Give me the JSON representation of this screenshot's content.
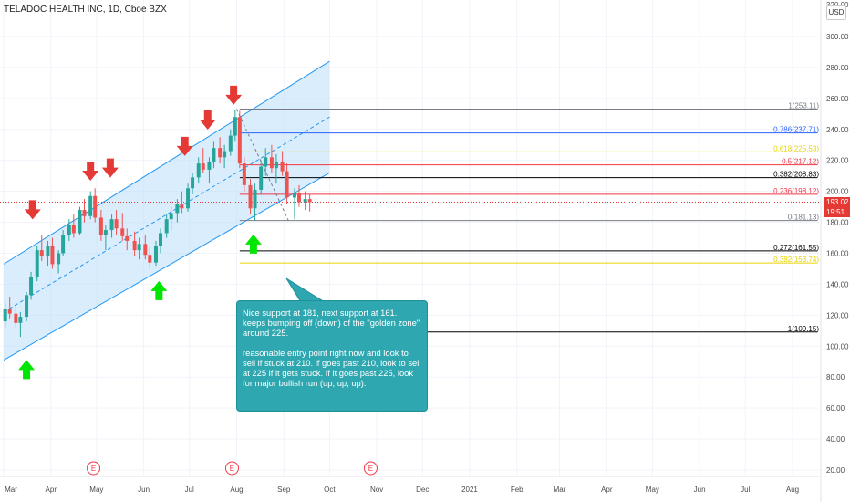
{
  "header": {
    "title": "TELADOC HEALTH INC, 1D, Cboe BZX",
    "currency_button": "USD"
  },
  "current_price": {
    "value": "193.02",
    "countdown": "19:51",
    "color": "#e53935"
  },
  "chart_data": {
    "type": "candlestick",
    "title": "TELADOC HEALTH INC, 1D, Cboe BZX",
    "y_ticks": [
      20,
      40,
      60,
      80,
      100,
      120,
      140,
      160,
      180,
      200,
      220,
      240,
      260,
      280,
      300
    ],
    "y_tick_labels": [
      "20.00",
      "40.00",
      "60.00",
      "80.00",
      "100.00",
      "120.00",
      "140.00",
      "160.00",
      "180.00",
      "200.00",
      "220.00",
      "240.00",
      "260.00",
      "280.00",
      "300.00"
    ],
    "y_top_partial_label": "320.00",
    "ylim": [
      12,
      322
    ],
    "x_labels": [
      "Mar",
      "Apr",
      "May",
      "Jun",
      "Jul",
      "Aug",
      "Sep",
      "Oct",
      "Nov",
      "Dec",
      "2021",
      "Feb",
      "Mar",
      "Apr",
      "May",
      "Jun",
      "Jul",
      "Aug"
    ],
    "x_label_dates": [
      "2020-03-01",
      "2020-04-01",
      "2020-05-01",
      "2020-06-01",
      "2020-07-01",
      "2020-08-01",
      "2020-09-01",
      "2020-10-01",
      "2020-11-01",
      "2020-12-01",
      "2021-01-01",
      "2021-02-01",
      "2021-03-01",
      "2021-04-01",
      "2021-05-01",
      "2021-06-01",
      "2021-07-01",
      "2021-08-01"
    ],
    "earnings_markers": [
      "2020-04-29",
      "2020-07-29",
      "2020-10-28"
    ],
    "earnings_label": "E",
    "up_color": "#26a69a",
    "down_color": "#ef5350",
    "channel": {
      "fill_color": "#bbdefb",
      "line_color": "#2196f3",
      "upper": [
        [
          "2020-03-01",
          153
        ],
        [
          "2020-10-01",
          284
        ]
      ],
      "lower": [
        [
          "2020-03-01",
          91
        ],
        [
          "2020-10-01",
          212
        ]
      ]
    },
    "fib_levels": [
      {
        "label": "1(253.11)",
        "value": 253.11,
        "color": "#787b86"
      },
      {
        "label": "0.786(237.71)",
        "value": 237.71,
        "color": "#2962ff"
      },
      {
        "label": "0.618(225.53)",
        "value": 225.53,
        "color": "#e6d300"
      },
      {
        "label": "0.5(217.12)",
        "value": 217.12,
        "color": "#f23645"
      },
      {
        "label": "0.382(208.83)",
        "value": 208.83,
        "color": "#000000"
      },
      {
        "label": "0.236(198.12)",
        "value": 198.12,
        "color": "#f23645"
      },
      {
        "label": "0(181.13)",
        "value": 181.13,
        "color": "#787b86"
      },
      {
        "label": "0.272(161.55)",
        "value": 161.55,
        "color": "#000000"
      },
      {
        "label": "0.382(153.74)",
        "value": 153.74,
        "color": "#e6d300"
      },
      {
        "label": "1(109.15)",
        "value": 109.15,
        "color": "#000000"
      }
    ],
    "series": [
      {
        "name": "",
        "candles": [
          [
            "2020-03-02",
            116,
            128,
            112,
            124
          ],
          [
            "2020-03-05",
            124,
            132,
            118,
            121
          ],
          [
            "2020-03-09",
            121,
            126,
            112,
            115
          ],
          [
            "2020-03-12",
            115,
            122,
            106,
            119
          ],
          [
            "2020-03-16",
            119,
            135,
            116,
            133
          ],
          [
            "2020-03-19",
            133,
            148,
            130,
            145
          ],
          [
            "2020-03-23",
            145,
            165,
            142,
            162
          ],
          [
            "2020-03-26",
            162,
            172,
            155,
            158
          ],
          [
            "2020-03-30",
            158,
            168,
            152,
            165
          ],
          [
            "2020-04-02",
            165,
            170,
            150,
            153
          ],
          [
            "2020-04-06",
            153,
            162,
            147,
            160
          ],
          [
            "2020-04-09",
            160,
            175,
            158,
            172
          ],
          [
            "2020-04-13",
            172,
            182,
            168,
            178
          ],
          [
            "2020-04-16",
            178,
            185,
            170,
            173
          ],
          [
            "2020-04-20",
            173,
            190,
            172,
            188
          ],
          [
            "2020-04-23",
            188,
            195,
            180,
            184
          ],
          [
            "2020-04-27",
            184,
            200,
            182,
            197
          ],
          [
            "2020-04-30",
            197,
            202,
            180,
            183
          ],
          [
            "2020-05-04",
            183,
            188,
            168,
            172
          ],
          [
            "2020-05-07",
            172,
            178,
            162,
            175
          ],
          [
            "2020-05-11",
            175,
            185,
            170,
            182
          ],
          [
            "2020-05-14",
            182,
            188,
            172,
            176
          ],
          [
            "2020-05-18",
            176,
            186,
            168,
            171
          ],
          [
            "2020-05-21",
            171,
            176,
            162,
            168
          ],
          [
            "2020-05-26",
            168,
            174,
            158,
            162
          ],
          [
            "2020-05-29",
            162,
            170,
            156,
            166
          ],
          [
            "2020-06-02",
            166,
            172,
            156,
            159
          ],
          [
            "2020-06-05",
            159,
            164,
            150,
            154
          ],
          [
            "2020-06-09",
            154,
            168,
            152,
            165
          ],
          [
            "2020-06-12",
            165,
            176,
            160,
            173
          ],
          [
            "2020-06-16",
            173,
            185,
            170,
            182
          ],
          [
            "2020-06-19",
            182,
            190,
            175,
            186
          ],
          [
            "2020-06-23",
            186,
            195,
            180,
            192
          ],
          [
            "2020-06-26",
            192,
            200,
            186,
            189
          ],
          [
            "2020-06-30",
            189,
            205,
            187,
            202
          ],
          [
            "2020-07-03",
            202,
            212,
            198,
            209
          ],
          [
            "2020-07-07",
            209,
            222,
            205,
            218
          ],
          [
            "2020-07-10",
            218,
            228,
            212,
            214
          ],
          [
            "2020-07-14",
            214,
            222,
            205,
            219
          ],
          [
            "2020-07-17",
            219,
            232,
            215,
            228
          ],
          [
            "2020-07-21",
            228,
            235,
            218,
            222
          ],
          [
            "2020-07-24",
            222,
            230,
            215,
            226
          ],
          [
            "2020-07-28",
            226,
            240,
            223,
            236
          ],
          [
            "2020-07-31",
            236,
            253,
            232,
            248
          ],
          [
            "2020-08-03",
            248,
            252,
            215,
            218
          ],
          [
            "2020-08-06",
            218,
            222,
            200,
            204
          ],
          [
            "2020-08-10",
            204,
            208,
            185,
            189
          ],
          [
            "2020-08-13",
            189,
            205,
            181,
            201
          ],
          [
            "2020-08-17",
            201,
            220,
            198,
            216
          ],
          [
            "2020-08-20",
            216,
            228,
            210,
            222
          ],
          [
            "2020-08-24",
            222,
            230,
            212,
            215
          ],
          [
            "2020-08-27",
            215,
            224,
            205,
            219
          ],
          [
            "2020-08-31",
            219,
            226,
            210,
            213
          ],
          [
            "2020-09-03",
            213,
            218,
            192,
            196
          ],
          [
            "2020-09-08",
            196,
            202,
            182,
            199
          ],
          [
            "2020-09-11",
            199,
            204,
            190,
            193
          ],
          [
            "2020-09-15",
            193,
            200,
            188,
            195
          ],
          [
            "2020-09-18",
            195,
            198,
            187,
            193
          ]
        ]
      }
    ],
    "annotations": [
      {
        "type": "arrow-down",
        "color": "#e53935",
        "date": "2020-03-20",
        "value": 186
      },
      {
        "type": "arrow-down",
        "color": "#e53935",
        "date": "2020-04-27",
        "value": 211
      },
      {
        "type": "arrow-down",
        "color": "#e53935",
        "date": "2020-05-10",
        "value": 213
      },
      {
        "type": "arrow-down",
        "color": "#e53935",
        "date": "2020-06-28",
        "value": 227
      },
      {
        "type": "arrow-down",
        "color": "#e53935",
        "date": "2020-07-13",
        "value": 244
      },
      {
        "type": "arrow-down",
        "color": "#e53935",
        "date": "2020-07-30",
        "value": 260
      },
      {
        "type": "arrow-up",
        "color": "#00e600",
        "date": "2020-03-16",
        "value": 87
      },
      {
        "type": "arrow-up",
        "color": "#00e600",
        "date": "2020-06-11",
        "value": 138
      },
      {
        "type": "arrow-up",
        "color": "#00e600",
        "date": "2020-08-12",
        "value": 168
      }
    ],
    "note": {
      "paragraphs": [
        "Nice support at 181, next support at 161.  keeps bumping off (down) of the \"golden zone\" around 225.",
        "reasonable entry point right now and look to sell if stuck at 210.  if goes past 210, look to sell at 225 if it gets stuck.  If it goes past 225, look for major bullish run (up, up, up)."
      ],
      "color": "#2fa7b0"
    }
  }
}
